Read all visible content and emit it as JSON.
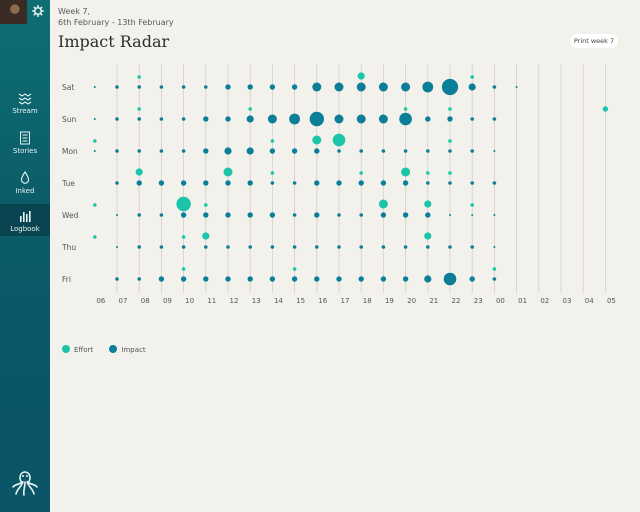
{
  "header": {
    "week": "Week 7,",
    "range": "6th February - 13th February",
    "title": "Impact Radar",
    "print_label": "Print week 7"
  },
  "sidebar": {
    "items": [
      {
        "label": "Stream",
        "icon": "stream-icon"
      },
      {
        "label": "Stories",
        "icon": "stories-icon"
      },
      {
        "label": "Inked",
        "icon": "ink-drop-icon"
      },
      {
        "label": "Logbook",
        "icon": "logbook-icon"
      }
    ],
    "active": "Logbook"
  },
  "colors": {
    "effort": "#1cc4a9",
    "impact": "#0b7f97",
    "sidebar": "#0b5f69"
  },
  "legend": {
    "effort": "Effort",
    "impact": "Impact"
  },
  "chart_data": {
    "type": "scatter",
    "days": [
      "Sat",
      "Sun",
      "Mon",
      "Tue",
      "Wed",
      "Thu",
      "Fri"
    ],
    "hours": [
      "06",
      "07",
      "08",
      "09",
      "10",
      "11",
      "12",
      "13",
      "14",
      "15",
      "16",
      "17",
      "18",
      "19",
      "20",
      "21",
      "22",
      "23",
      "00",
      "01",
      "02",
      "03",
      "04",
      "05"
    ],
    "series": [
      {
        "name": "Impact",
        "values": [
          [
            1,
            2,
            2,
            2,
            2,
            2,
            3,
            3,
            3,
            3,
            5,
            5,
            5,
            5,
            5,
            6,
            9,
            4,
            2,
            1,
            0,
            0,
            0,
            0
          ],
          [
            1,
            2,
            2,
            2,
            2,
            3,
            3,
            4,
            5,
            6,
            8,
            5,
            5,
            5,
            7,
            3,
            3,
            2,
            2,
            0,
            0,
            0,
            0,
            0
          ],
          [
            1,
            2,
            2,
            2,
            2,
            3,
            4,
            4,
            3,
            3,
            3,
            2,
            2,
            2,
            2,
            2,
            2,
            2,
            1,
            0,
            0,
            0,
            0,
            0
          ],
          [
            0,
            2,
            3,
            3,
            3,
            3,
            3,
            3,
            2,
            2,
            3,
            3,
            3,
            3,
            3,
            2,
            2,
            2,
            2,
            0,
            0,
            0,
            0,
            0
          ],
          [
            0,
            1,
            2,
            2,
            3,
            3,
            3,
            3,
            3,
            2,
            3,
            2,
            2,
            3,
            3,
            3,
            1,
            1,
            1,
            0,
            0,
            0,
            0,
            0
          ],
          [
            0,
            1,
            2,
            2,
            2,
            2,
            2,
            2,
            2,
            2,
            2,
            2,
            2,
            2,
            2,
            2,
            2,
            2,
            1,
            0,
            0,
            0,
            0,
            0
          ],
          [
            0,
            2,
            2,
            3,
            3,
            3,
            3,
            3,
            3,
            3,
            3,
            3,
            3,
            3,
            3,
            4,
            7,
            3,
            2,
            0,
            0,
            0,
            0,
            0
          ]
        ]
      },
      {
        "name": "Effort",
        "values": [
          [
            0,
            0,
            2,
            0,
            0,
            0,
            0,
            0,
            0,
            0,
            0,
            0,
            4,
            0,
            0,
            0,
            0,
            2,
            0,
            0,
            0,
            0,
            0,
            0
          ],
          [
            0,
            0,
            2,
            0,
            0,
            0,
            0,
            2,
            0,
            0,
            0,
            0,
            0,
            0,
            2,
            0,
            2,
            0,
            0,
            0,
            0,
            0,
            0,
            3
          ],
          [
            2,
            0,
            0,
            0,
            0,
            0,
            0,
            0,
            2,
            0,
            5,
            7,
            0,
            0,
            0,
            0,
            2,
            0,
            0,
            0,
            0,
            0,
            0,
            0
          ],
          [
            0,
            0,
            4,
            0,
            0,
            0,
            5,
            0,
            2,
            0,
            0,
            0,
            2,
            0,
            5,
            2,
            2,
            0,
            0,
            0,
            0,
            0,
            0,
            0
          ],
          [
            2,
            0,
            0,
            0,
            8,
            2,
            0,
            0,
            0,
            0,
            0,
            0,
            0,
            5,
            0,
            4,
            0,
            2,
            0,
            0,
            0,
            0,
            0,
            0
          ],
          [
            2,
            0,
            0,
            0,
            2,
            4,
            0,
            0,
            0,
            0,
            0,
            0,
            0,
            0,
            0,
            4,
            0,
            0,
            0,
            0,
            0,
            0,
            0,
            0
          ],
          [
            0,
            0,
            0,
            0,
            2,
            0,
            0,
            0,
            0,
            2,
            0,
            0,
            0,
            0,
            0,
            0,
            0,
            0,
            2,
            0,
            0,
            0,
            0,
            0
          ]
        ]
      }
    ],
    "legend": "bottom-left",
    "grid": true
  }
}
